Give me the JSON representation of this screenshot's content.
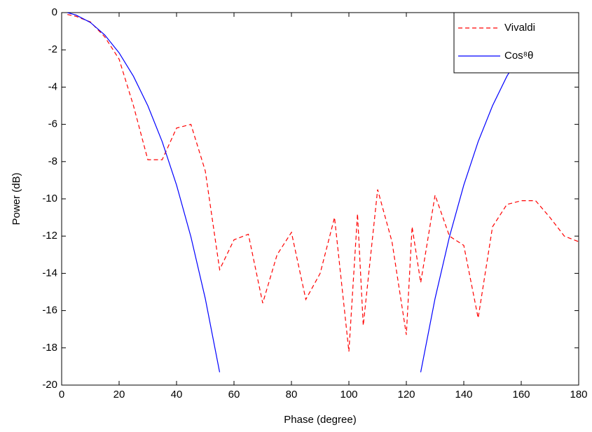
{
  "chart_data": {
    "type": "line",
    "xlabel": "Phase (degree)",
    "ylabel": "Power (dB)",
    "xlim": [
      0,
      180
    ],
    "xticks": [
      0,
      20,
      40,
      60,
      80,
      100,
      120,
      140,
      160,
      180
    ],
    "ylim": [
      -20,
      0
    ],
    "yticks": [
      -20,
      -18,
      -16,
      -14,
      -12,
      -10,
      -8,
      -6,
      -4,
      -2,
      0
    ],
    "grid": false,
    "legend": "upper right",
    "series": [
      {
        "name": "Vivaldi",
        "color": "#ff0000",
        "dash": true,
        "x": [
          2,
          5,
          10,
          15,
          20,
          25,
          30,
          35,
          40,
          45,
          50,
          55,
          60,
          65,
          70,
          75,
          80,
          85,
          90,
          95,
          100,
          103,
          105,
          110,
          115,
          120,
          122,
          125,
          130,
          135,
          140,
          145,
          150,
          155,
          160,
          165,
          170,
          175,
          180
        ],
        "values": [
          -0.1,
          -0.2,
          -0.5,
          -1.3,
          -2.5,
          -5,
          -7.9,
          -7.9,
          -6.2,
          -6,
          -8.5,
          -13.8,
          -12.2,
          -11.9,
          -15.6,
          -13,
          -11.8,
          -15.4,
          -14,
          -11,
          -18.2,
          -10.8,
          -16.8,
          -9.5,
          -12.3,
          -17.3,
          -11.5,
          -14.5,
          -9.8,
          -12,
          -12.5,
          -16.4,
          -11.5,
          -10.3,
          -10.1,
          -10.1,
          -11,
          -12,
          -12.3
        ]
      },
      {
        "name": "Cos⁸θ",
        "color": "#0000ff",
        "dash": false,
        "x": [
          2,
          5,
          10,
          15,
          20,
          25,
          30,
          35,
          40,
          45,
          50,
          55,
          null,
          125,
          130,
          135,
          140,
          145,
          150,
          155,
          160,
          165,
          170,
          175,
          176
        ],
        "values": [
          0,
          -0.13,
          -0.53,
          -1.2,
          -2.16,
          -3.42,
          -5,
          -6.93,
          -9.26,
          -12.04,
          -15.35,
          -19.31,
          null,
          -19.31,
          -15.35,
          -12.04,
          -9.26,
          -6.93,
          -5,
          -3.42,
          -2.16,
          -1.2,
          -0.53,
          -0.13,
          0
        ]
      }
    ]
  }
}
